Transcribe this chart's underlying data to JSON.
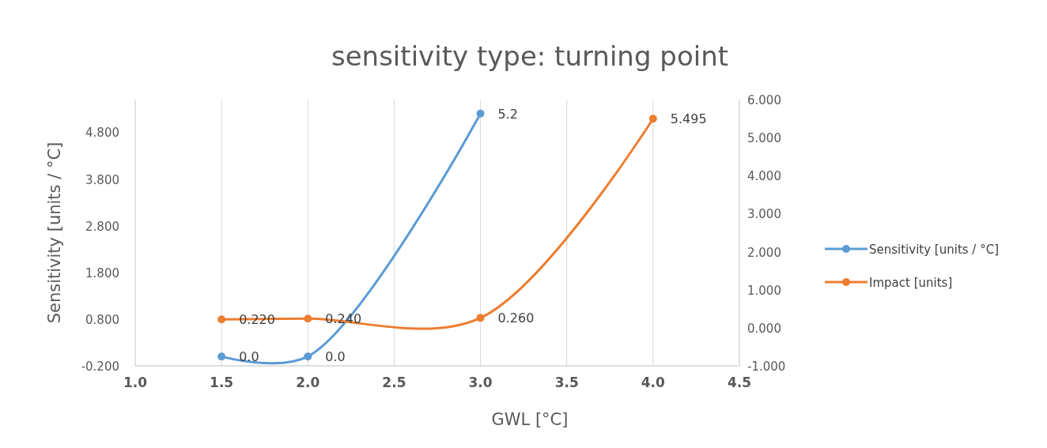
{
  "chart_data": {
    "type": "line",
    "title": "sensitivity type: turning point",
    "xlabel": "GWL [°C]",
    "ylabel": "Sensitivity [units / °C]",
    "series": [
      {
        "name": "Sensitivity [units / °C]",
        "color": "#5b9bd5",
        "x": [
          1.5,
          2.0,
          3.0
        ],
        "values": [
          0.0,
          0.0,
          5.2
        ],
        "value_labels": [
          "0.0",
          "0.0",
          "5.2"
        ]
      },
      {
        "name": "Impact [units]",
        "color": "#ed7d31",
        "axis": "y2",
        "x": [
          1.5,
          2.0,
          3.0,
          4.0
        ],
        "values": [
          0.22,
          0.24,
          0.26,
          5.495
        ],
        "value_labels": [
          "0.220",
          "0.240",
          "0.260",
          "5.495"
        ]
      }
    ],
    "xlim": [
      1.0,
      4.5
    ],
    "xticks": [
      {
        "value": 1.0,
        "label": "1.0"
      },
      {
        "value": 1.5,
        "label": "1.5"
      },
      {
        "value": 2.0,
        "label": "2.0"
      },
      {
        "value": 2.5,
        "label": "2.5"
      },
      {
        "value": 3.0,
        "label": "3.0"
      },
      {
        "value": 3.5,
        "label": "3.5"
      },
      {
        "value": 4.0,
        "label": "4.0"
      },
      {
        "value": 4.5,
        "label": "4.5"
      }
    ],
    "ylim": [
      -0.2,
      5.5
    ],
    "yticks": [
      {
        "value": -0.2,
        "label": "-0.200"
      },
      {
        "value": 0.8,
        "label": "0.800"
      },
      {
        "value": 1.8,
        "label": "1.800"
      },
      {
        "value": 2.8,
        "label": "2.800"
      },
      {
        "value": 3.8,
        "label": "3.800"
      },
      {
        "value": 4.8,
        "label": "4.800"
      }
    ],
    "y2lim": [
      -1,
      6
    ],
    "y2ticks": [
      {
        "value": -1,
        "label": "-1.000"
      },
      {
        "value": 0,
        "label": "0.000"
      },
      {
        "value": 1,
        "label": "1.000"
      },
      {
        "value": 2,
        "label": "2.000"
      },
      {
        "value": 3,
        "label": "3.000"
      },
      {
        "value": 4,
        "label": "4.000"
      },
      {
        "value": 5,
        "label": "5.000"
      },
      {
        "value": 6,
        "label": "6.000"
      }
    ],
    "grid": "x",
    "legend": "right",
    "marker": "circle",
    "line_style": "solid"
  }
}
